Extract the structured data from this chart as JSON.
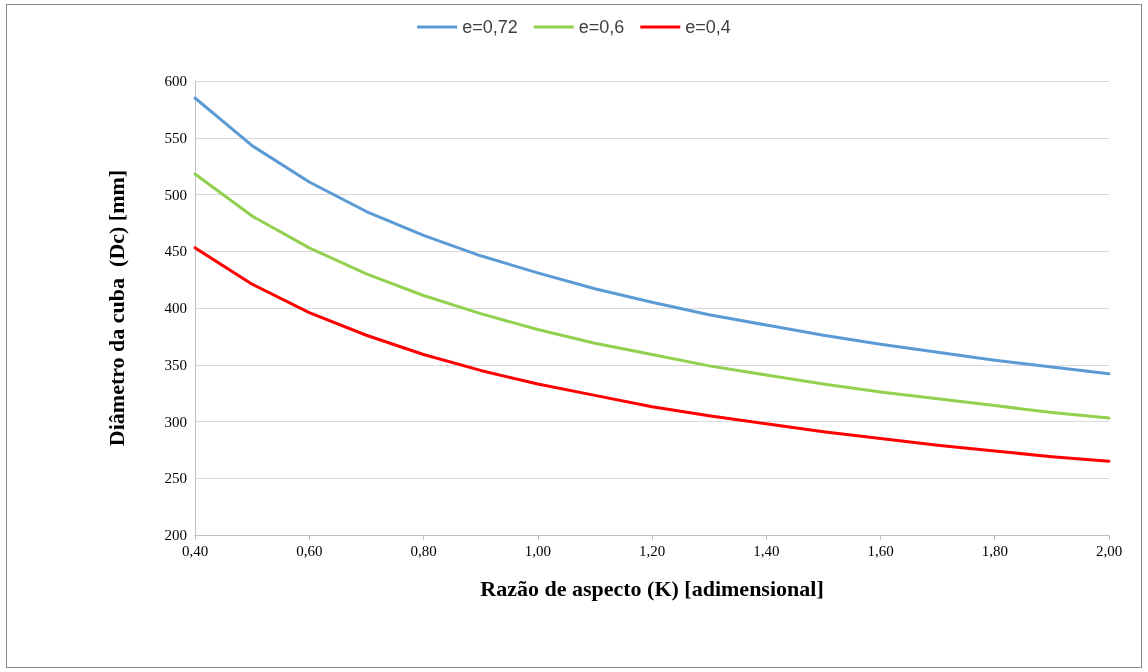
{
  "chart_data": {
    "type": "line",
    "xlabel": "Razão de aspecto (K) [adimensional]",
    "ylabel": "Diâmetro da cuba  (Dc) [mm]",
    "x": [
      0.4,
      0.5,
      0.6,
      0.7,
      0.8,
      0.9,
      1.0,
      1.1,
      1.2,
      1.3,
      1.4,
      1.5,
      1.6,
      1.7,
      1.8,
      1.9,
      2.0
    ],
    "series": [
      {
        "name": "e=0,72",
        "color": "#5b9bd5",
        "values": [
          585,
          543,
          511,
          485,
          464,
          446,
          431,
          417,
          405,
          394,
          385,
          376,
          368,
          361,
          354,
          348,
          342
        ]
      },
      {
        "name": "e=0,6",
        "color": "#92d050",
        "values": [
          518,
          481,
          453,
          430,
          411,
          395,
          381,
          369,
          359,
          349,
          341,
          333,
          326,
          320,
          314,
          308,
          303
        ]
      },
      {
        "name": "e=0,4",
        "color": "#ff0000",
        "values": [
          453,
          421,
          396,
          376,
          359,
          345,
          333,
          323,
          313,
          305,
          298,
          291,
          285,
          279,
          274,
          269,
          265
        ]
      }
    ],
    "xlim": [
      0.4,
      2.0
    ],
    "xticks": [
      {
        "value": 0.4,
        "label": "0,40"
      },
      {
        "value": 0.6,
        "label": "0,60"
      },
      {
        "value": 0.8,
        "label": "0,80"
      },
      {
        "value": 1.0,
        "label": "1,00"
      },
      {
        "value": 1.2,
        "label": "1,20"
      },
      {
        "value": 1.4,
        "label": "1,40"
      },
      {
        "value": 1.6,
        "label": "1,60"
      },
      {
        "value": 1.8,
        "label": "1,80"
      },
      {
        "value": 2.0,
        "label": "2,00"
      }
    ],
    "ylim": [
      200,
      600
    ],
    "yticks": [
      200,
      250,
      300,
      350,
      400,
      450,
      500,
      550,
      600
    ],
    "grid": "y",
    "legend": "top",
    "marker": "none",
    "line_style": "solid"
  }
}
